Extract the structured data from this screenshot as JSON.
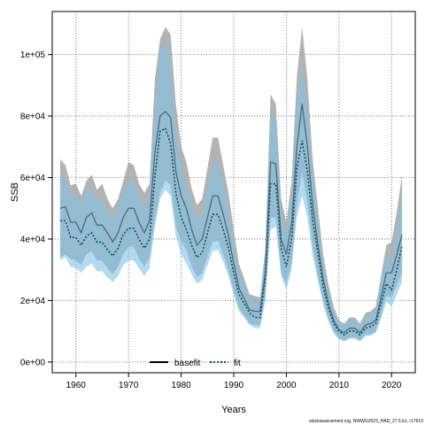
{
  "chart_data": {
    "type": "line",
    "xlabel": "Years",
    "ylabel": "SSB",
    "xlim": [
      1955.5,
      2024.5
    ],
    "ylim": [
      -3500,
      114000
    ],
    "x_ticks": [
      1960,
      1970,
      1980,
      1990,
      2000,
      2010,
      2020
    ],
    "x_tick_labels": [
      "1960",
      "1970",
      "1980",
      "1990",
      "2000",
      "2010",
      "2020"
    ],
    "y_ticks": [
      0,
      20000,
      40000,
      60000,
      80000,
      100000
    ],
    "y_tick_labels": [
      "0e+00",
      "2e+04",
      "4e+04",
      "6e+04",
      "8e+04",
      "1e+05"
    ],
    "grid": true,
    "legend_position": "bottom-left",
    "footer_note": "stockassessment.org, NWWG2023_HAD_27.5.b1, r17619",
    "colors": {
      "basefit_band": "#a6a6a6",
      "fit_band": "#7ec3e8",
      "basefit_line": "#000000",
      "fit_line": "#0a4f5f"
    },
    "x": [
      1957,
      1958,
      1959,
      1960,
      1961,
      1962,
      1963,
      1964,
      1965,
      1966,
      1967,
      1968,
      1969,
      1970,
      1971,
      1972,
      1973,
      1974,
      1975,
      1976,
      1977,
      1978,
      1979,
      1980,
      1981,
      1982,
      1983,
      1984,
      1985,
      1986,
      1987,
      1988,
      1989,
      1990,
      1991,
      1992,
      1993,
      1994,
      1995,
      1996,
      1997,
      1998,
      1999,
      2000,
      2001,
      2002,
      2003,
      2004,
      2005,
      2006,
      2007,
      2008,
      2009,
      2010,
      2011,
      2012,
      2013,
      2014,
      2015,
      2016,
      2017,
      2018,
      2019,
      2020,
      2021,
      2022
    ],
    "series": [
      {
        "name": "basefit",
        "values": [
          50000,
          50500,
          45500,
          45500,
          42000,
          47000,
          48500,
          44500,
          44500,
          42000,
          39000,
          42000,
          47000,
          50000,
          50000,
          45500,
          42000,
          46000,
          68000,
          80000,
          81500,
          79500,
          62000,
          54000,
          50000,
          43000,
          38000,
          40000,
          47000,
          54000,
          54000,
          48000,
          41000,
          32000,
          24000,
          20500,
          17000,
          16500,
          16500,
          29000,
          65000,
          64500,
          40000,
          35000,
          45000,
          70000,
          84000,
          70000,
          51000,
          38000,
          27000,
          19000,
          13500,
          10500,
          9500,
          11000,
          11000,
          9500,
          12000,
          12500,
          13500,
          21000,
          29000,
          29000,
          35000,
          41500
        ],
        "lower": [
          34000,
          35000,
          33500,
          33000,
          31500,
          35000,
          36000,
          33000,
          33000,
          30500,
          28500,
          31000,
          35000,
          37500,
          37500,
          33500,
          31000,
          34000,
          46000,
          55000,
          59000,
          57500,
          44000,
          39500,
          36500,
          31000,
          27500,
          29000,
          34000,
          39000,
          39500,
          35000,
          29500,
          23000,
          17500,
          15000,
          12500,
          12000,
          12000,
          21000,
          47000,
          47000,
          29000,
          25500,
          32500,
          51000,
          62000,
          51500,
          37500,
          27500,
          20000,
          14000,
          10000,
          7800,
          7000,
          8000,
          8000,
          7000,
          9000,
          9000,
          10000,
          15500,
          21500,
          21000,
          25000,
          29000
        ],
        "upper": [
          66000,
          64000,
          57500,
          58000,
          54000,
          59000,
          61000,
          56000,
          58000,
          53000,
          50000,
          53000,
          59000,
          65000,
          64000,
          58000,
          55000,
          58000,
          92000,
          105000,
          109000,
          106500,
          84000,
          70000,
          65000,
          56500,
          51000,
          53000,
          63000,
          73000,
          73000,
          64000,
          55000,
          43000,
          32000,
          27000,
          22000,
          21500,
          21000,
          37000,
          87000,
          84000,
          53000,
          45500,
          59000,
          93000,
          109000,
          92000,
          66000,
          50000,
          35000,
          25000,
          18000,
          13500,
          12500,
          14500,
          14500,
          12500,
          16000,
          16500,
          18000,
          28000,
          38000,
          39000,
          49000,
          61000
        ]
      },
      {
        "name": "fit",
        "values": [
          46000,
          46000,
          40500,
          40500,
          38000,
          41000,
          42000,
          39000,
          39000,
          36500,
          34500,
          37000,
          41500,
          43500,
          43500,
          40000,
          37000,
          40000,
          60000,
          75000,
          76000,
          71000,
          55000,
          47000,
          43000,
          38000,
          34000,
          35500,
          42000,
          48000,
          48000,
          43000,
          37000,
          29000,
          22000,
          19000,
          16000,
          14500,
          14500,
          27000,
          58000,
          58000,
          37000,
          31000,
          40000,
          63000,
          72000,
          62000,
          46000,
          35500,
          24500,
          17500,
          12500,
          10000,
          8800,
          10000,
          10000,
          8800,
          11000,
          11500,
          12500,
          19000,
          25500,
          23500,
          30000,
          38000
        ],
        "lower": [
          33000,
          34000,
          31000,
          30500,
          29000,
          31000,
          32000,
          29500,
          29500,
          27500,
          26000,
          28000,
          31500,
          33000,
          33000,
          30500,
          28000,
          30500,
          44000,
          53000,
          56000,
          54000,
          41000,
          35000,
          32000,
          28500,
          25500,
          26500,
          31500,
          36000,
          36500,
          32500,
          28000,
          22000,
          16500,
          14500,
          12000,
          11000,
          11000,
          20000,
          43000,
          44000,
          28000,
          23500,
          30000,
          47000,
          54000,
          47000,
          34500,
          26500,
          18500,
          13000,
          9300,
          7300,
          6600,
          7500,
          7500,
          6600,
          8300,
          8600,
          9400,
          14000,
          19500,
          18000,
          22000,
          26000
        ],
        "upper": [
          60000,
          60000,
          54000,
          55000,
          51000,
          55500,
          56500,
          52500,
          53000,
          49000,
          46500,
          50000,
          56000,
          59000,
          58500,
          54000,
          50000,
          54000,
          82000,
          102000,
          104000,
          97000,
          75000,
          63500,
          58000,
          51500,
          46000,
          48000,
          56500,
          65000,
          65000,
          58000,
          50000,
          39000,
          30000,
          25500,
          21500,
          19500,
          19500,
          36000,
          80000,
          79000,
          50000,
          42000,
          54000,
          85000,
          97000,
          84000,
          62000,
          48000,
          33000,
          23500,
          16800,
          13500,
          11800,
          13500,
          13500,
          11800,
          14800,
          15500,
          17000,
          26000,
          34000,
          33000,
          42000,
          56000
        ]
      }
    ]
  }
}
